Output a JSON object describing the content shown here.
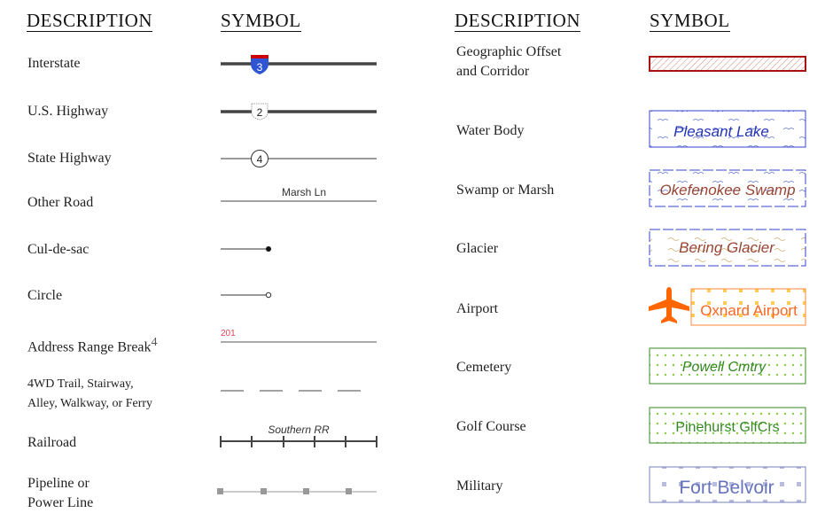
{
  "headers": {
    "description": "DESCRIPTION",
    "symbol": "SYMBOL"
  },
  "left": [
    {
      "label": "Interstate",
      "shield": "3"
    },
    {
      "label": "U.S. Highway",
      "shield": "2"
    },
    {
      "label": "State Highway",
      "shield": "4"
    },
    {
      "label": "Other Road",
      "road_name": "Marsh Ln"
    },
    {
      "label": "Cul-de-sac"
    },
    {
      "label": "Circle"
    },
    {
      "label": "Address Range Break",
      "footnote": "4",
      "address": "201"
    },
    {
      "label1": "4WD Trail, Stairway,",
      "label2": "Alley, Walkway, or Ferry"
    },
    {
      "label": "Railroad",
      "name": "Southern RR"
    },
    {
      "label1": "Pipeline or",
      "label2": "Power Line"
    }
  ],
  "right": [
    {
      "label1": "Geographic Offset",
      "label2": "and Corridor"
    },
    {
      "label": "Water Body",
      "name": "Pleasant Lake"
    },
    {
      "label": "Swamp or Marsh",
      "name": "Okefenokee Swamp"
    },
    {
      "label": "Glacier",
      "name": "Bering Glacier"
    },
    {
      "label": "Airport",
      "name": "Oxnard Airport",
      "icon": "airplane-icon"
    },
    {
      "label": "Cemetery",
      "name": "Powell Cmtry"
    },
    {
      "label": "Golf Course",
      "name": "Pinehurst GlfCrs"
    },
    {
      "label": "Military",
      "name": "Fort Belvoir"
    }
  ],
  "colors": {
    "interstate_blue": "#2f55d4",
    "interstate_red": "#cc0000",
    "offset_red": "#aa1111",
    "water": "#3344cc",
    "swamp_text": "#994433",
    "airport": "#ff6600",
    "cemetery": "#338822",
    "military": "#7781bb"
  }
}
